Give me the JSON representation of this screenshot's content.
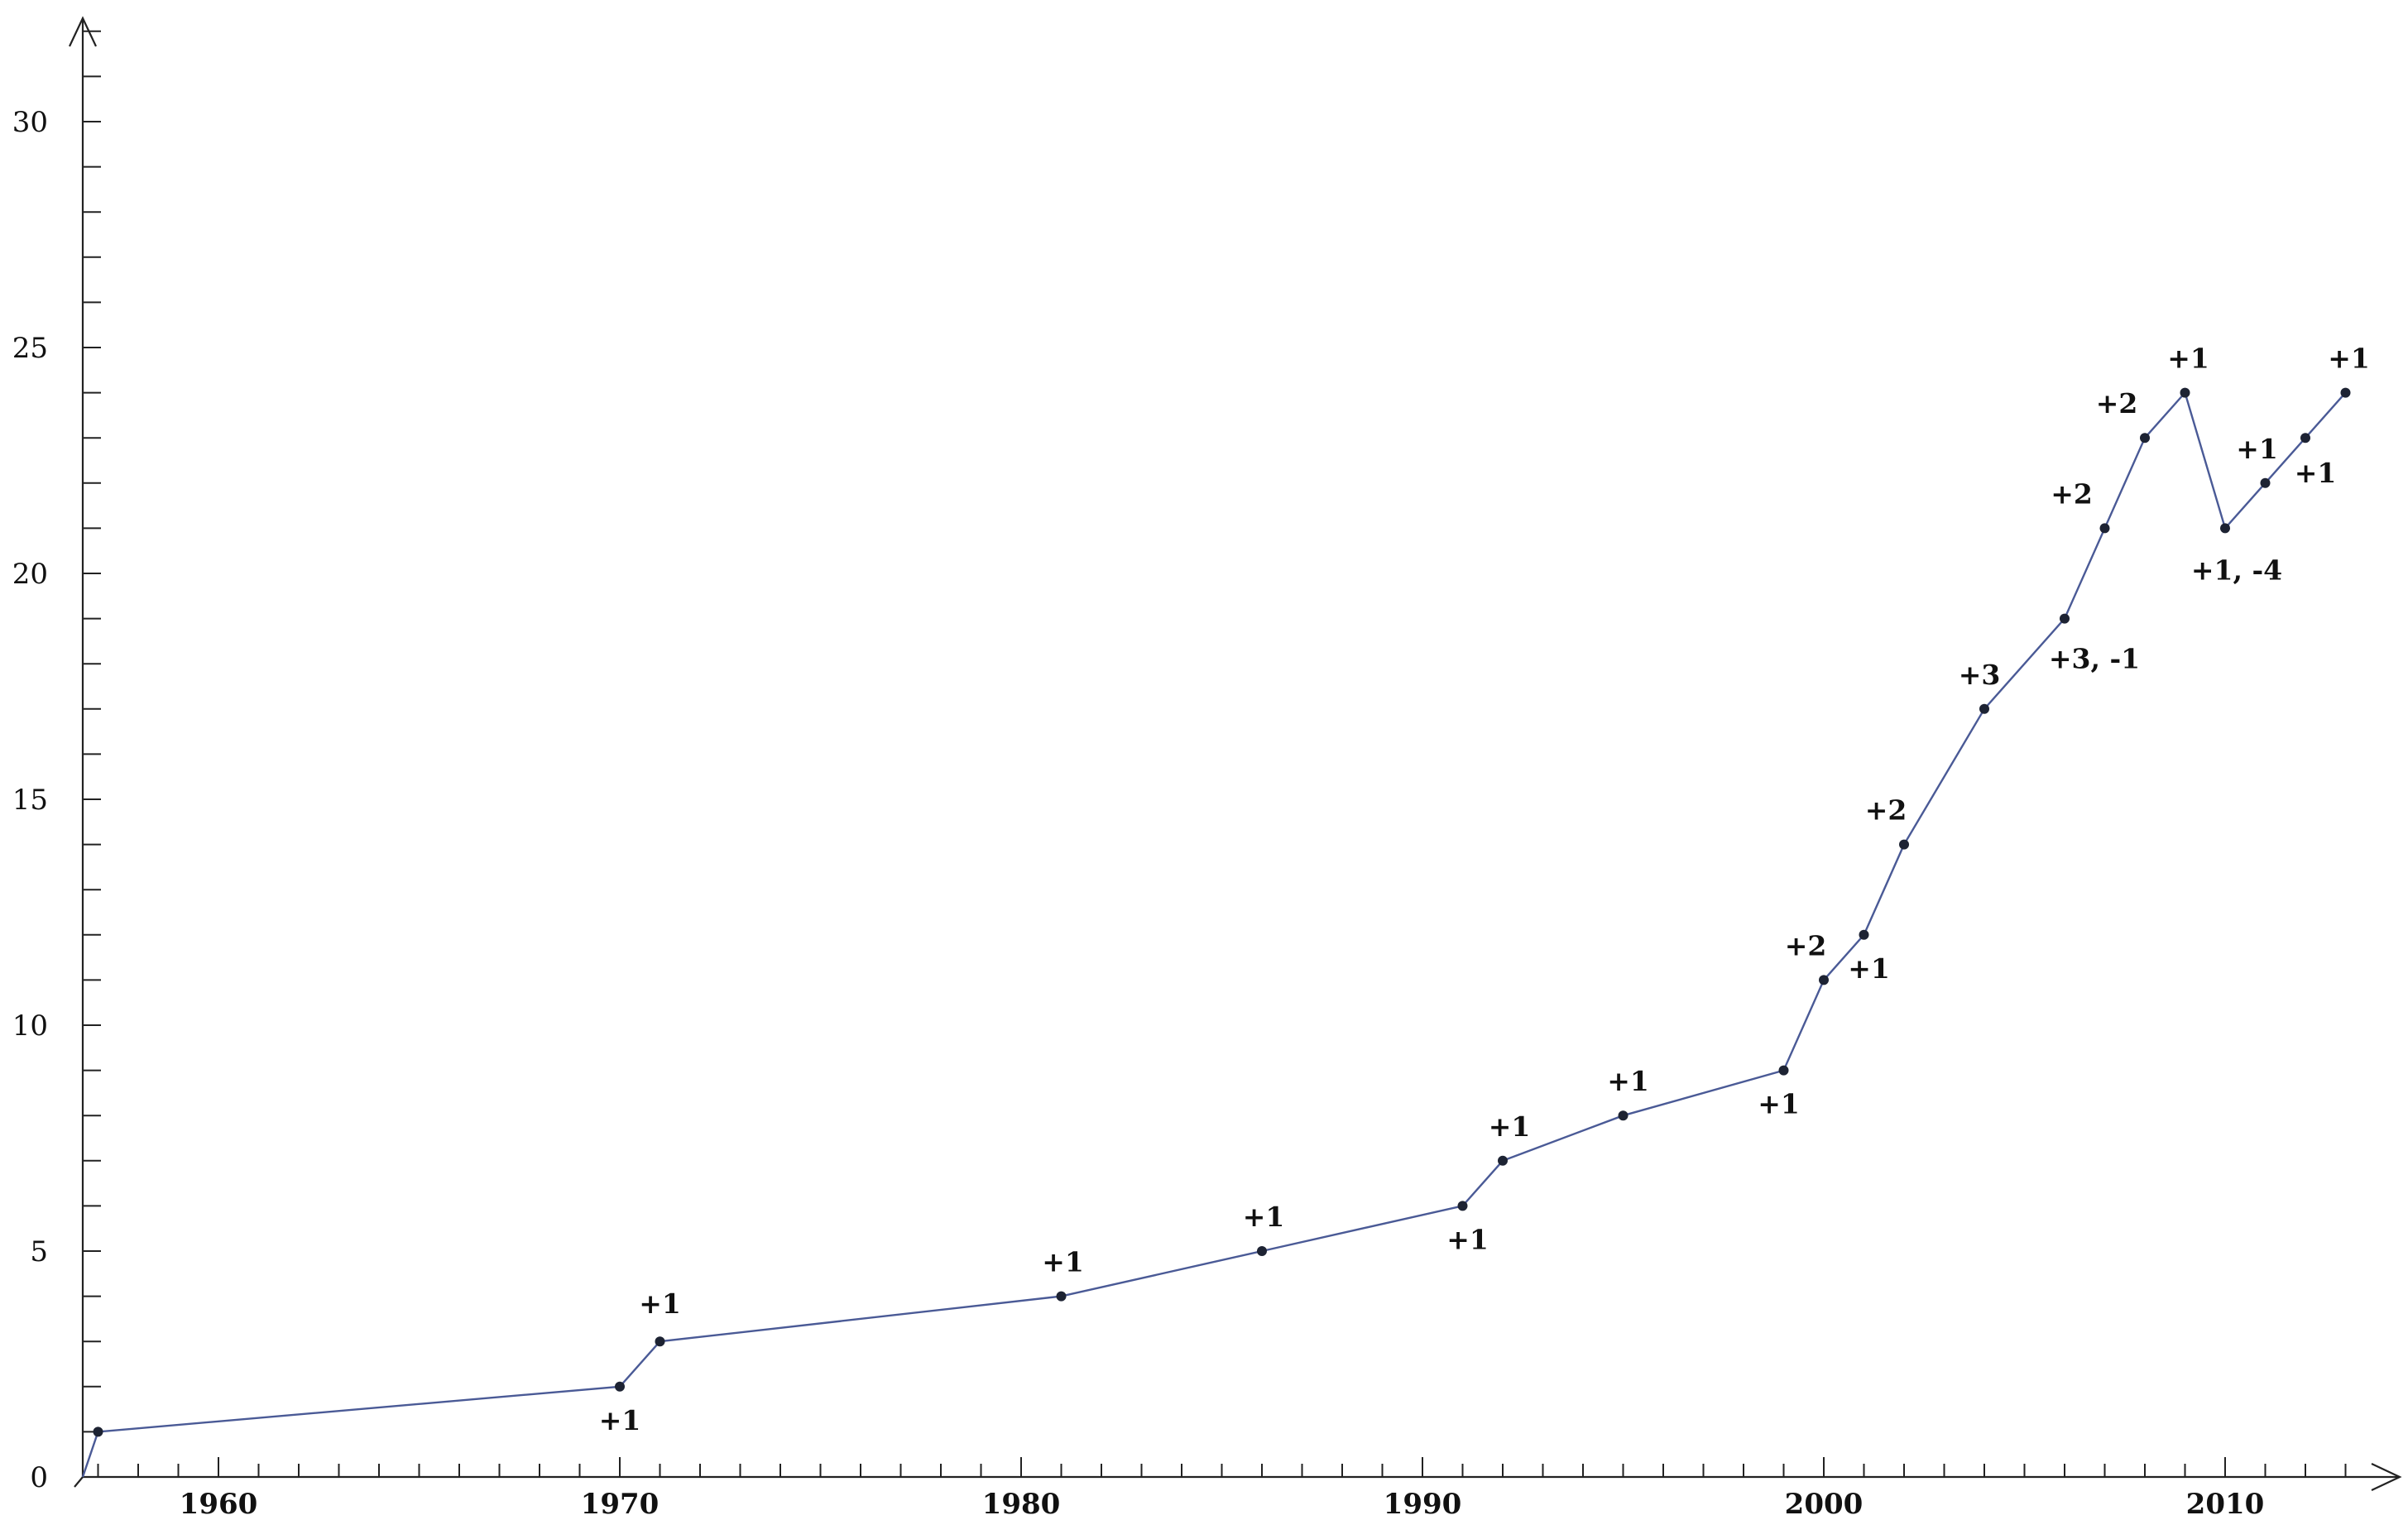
{
  "chart_data": {
    "type": "line",
    "title": "",
    "xlabel": "",
    "ylabel": "",
    "xlim": [
      1956,
      2014
    ],
    "ylim": [
      0,
      32
    ],
    "x_ticks": [
      1960,
      1970,
      1980,
      1990,
      2000,
      2010
    ],
    "y_ticks": [
      0,
      5,
      10,
      15,
      20,
      25,
      30
    ],
    "grid": false,
    "legend": "none",
    "series": [
      {
        "color": "#4a5a96",
        "points": [
          {
            "x": 1957,
            "y": 1,
            "label": ""
          },
          {
            "x": 1970,
            "y": 2,
            "label": "+1"
          },
          {
            "x": 1971,
            "y": 3,
            "label": "+1"
          },
          {
            "x": 1981,
            "y": 4,
            "label": "+1"
          },
          {
            "x": 1986,
            "y": 5,
            "label": "+1"
          },
          {
            "x": 1991,
            "y": 6,
            "label": "+1"
          },
          {
            "x": 1992,
            "y": 7,
            "label": "+1"
          },
          {
            "x": 1995,
            "y": 8,
            "label": "+1"
          },
          {
            "x": 1999,
            "y": 9,
            "label": "+1"
          },
          {
            "x": 2000,
            "y": 11,
            "label": "+2"
          },
          {
            "x": 2001,
            "y": 12,
            "label": "+1"
          },
          {
            "x": 2002,
            "y": 14,
            "label": "+2"
          },
          {
            "x": 2004,
            "y": 17,
            "label": "+3"
          },
          {
            "x": 2006,
            "y": 19,
            "label": "+3, -1"
          },
          {
            "x": 2007,
            "y": 21,
            "label": "+2"
          },
          {
            "x": 2008,
            "y": 23,
            "label": "+2"
          },
          {
            "x": 2009,
            "y": 24,
            "label": "+1"
          },
          {
            "x": 2010,
            "y": 21,
            "label": "+1, -4"
          },
          {
            "x": 2011,
            "y": 22,
            "label": "+1"
          },
          {
            "x": 2012,
            "y": 23,
            "label": "+1"
          },
          {
            "x": 2013,
            "y": 24,
            "label": "+1"
          }
        ]
      }
    ]
  }
}
